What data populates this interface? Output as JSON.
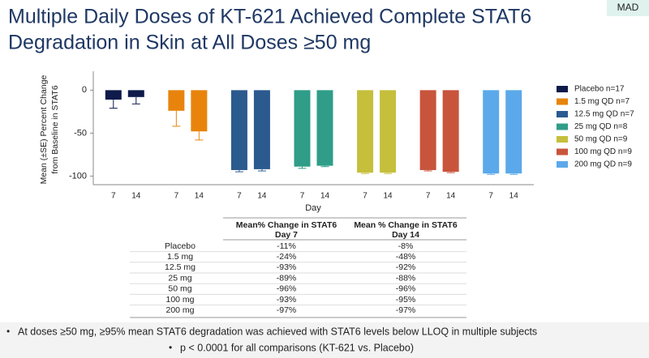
{
  "badge": "MAD",
  "chart_data": {
    "type": "bar",
    "title": [
      "Multiple Daily Doses of KT-621 Achieved Complete STAT6",
      "Degradation in Skin at All Doses ≥50 mg"
    ],
    "y_label": [
      "Mean (±SE) Percent Change",
      "from Baseline in STAT6"
    ],
    "x_label": "Day",
    "categories": [
      "7",
      "14"
    ],
    "series": [
      {
        "name": "Placebo n=17",
        "color": "#0d1a4a",
        "values": [
          -11,
          -8
        ],
        "errors": [
          10,
          8
        ]
      },
      {
        "name": "1.5 mg QD n=7",
        "color": "#e8840c",
        "values": [
          -24,
          -48
        ],
        "errors": [
          18,
          10
        ]
      },
      {
        "name": "12.5 mg QD n=7",
        "color": "#2b5a8e",
        "values": [
          -93,
          -92
        ],
        "errors": [
          2,
          2
        ]
      },
      {
        "name": "25 mg QD n=8",
        "color": "#2f9d88",
        "values": [
          -89,
          -88
        ],
        "errors": [
          2,
          1
        ]
      },
      {
        "name": "50 mg QD n=9",
        "color": "#c6bf3c",
        "values": [
          -96,
          -96
        ],
        "errors": [
          1,
          1
        ]
      },
      {
        "name": "100 mg QD n=9",
        "color": "#c8543c",
        "values": [
          -93,
          -95
        ],
        "errors": [
          1,
          1
        ]
      },
      {
        "name": "200 mg QD n=9",
        "color": "#5ba9ea",
        "values": [
          -97,
          -97
        ],
        "errors": [
          1,
          1
        ]
      }
    ],
    "ylim": [
      -110,
      22
    ],
    "yticks": [
      0,
      -50,
      -100
    ]
  },
  "table": {
    "header": [
      [
        "Mean% Change in STAT6",
        "Day 7"
      ],
      [
        "Mean % Change in STAT6",
        "Day 14"
      ]
    ],
    "rows": [
      [
        "Placebo",
        "-11%",
        "-8%"
      ],
      [
        "1.5 mg",
        "-24%",
        "-48%"
      ],
      [
        "12.5 mg",
        "-93%",
        "-92%"
      ],
      [
        "25 mg",
        "-89%",
        "-88%"
      ],
      [
        "50 mg",
        "-96%",
        "-96%"
      ],
      [
        "100 mg",
        "-93%",
        "-95%"
      ],
      [
        "200 mg",
        "-97%",
        "-97%"
      ]
    ]
  },
  "bullets": [
    "At doses ≥50 mg, ≥95% mean STAT6 degradation was achieved with STAT6 levels below LLOQ in multiple subjects",
    "p < 0.0001 for all comparisons (KT-621 vs. Placebo)"
  ]
}
